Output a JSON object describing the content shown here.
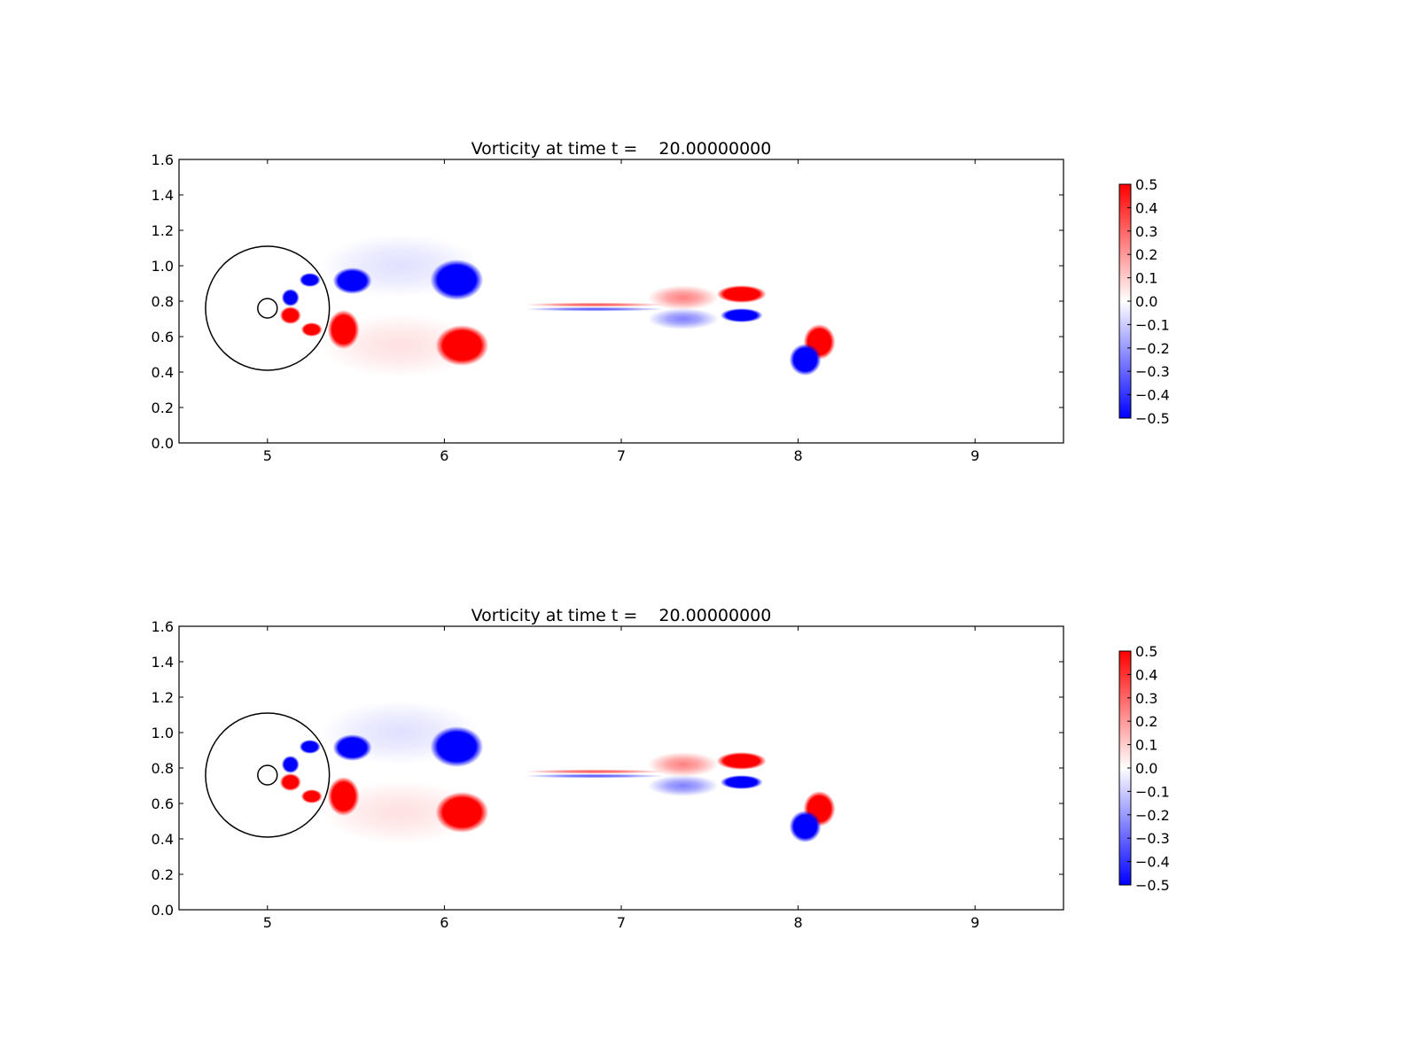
{
  "chart_data": [
    {
      "type": "heatmap",
      "title": "Vorticity at time t =    20.00000000",
      "xlim": [
        4.5,
        9.5
      ],
      "ylim": [
        0.0,
        1.6
      ],
      "xticks": [
        5,
        6,
        7,
        8,
        9
      ],
      "xtick_labels": [
        "5",
        "6",
        "7",
        "8",
        "9"
      ],
      "yticks": [
        0.0,
        0.2,
        0.4,
        0.6,
        0.8,
        1.0,
        1.2,
        1.4,
        1.6
      ],
      "ytick_labels": [
        "0.0",
        "0.2",
        "0.4",
        "0.6",
        "0.8",
        "1.0",
        "1.2",
        "1.4",
        "1.6"
      ],
      "grid": false,
      "colormap": {
        "low": "#0000ff",
        "mid": "#ffffff",
        "high": "#ff0000"
      },
      "colorbar": {
        "range": [
          -0.5,
          0.5
        ],
        "ticks": [
          0.5,
          0.4,
          0.3,
          0.2,
          0.1,
          0.0,
          -0.1,
          -0.2,
          -0.3,
          -0.4,
          -0.5
        ],
        "tick_labels": [
          "0.5",
          "0.4",
          "0.3",
          "0.2",
          "0.1",
          "0.0",
          "−0.1",
          "−0.2",
          "−0.3",
          "−0.4",
          "−0.5"
        ]
      },
      "circles": [
        {
          "cx": 5.0,
          "cy": 0.76,
          "r": 0.35
        },
        {
          "cx": 5.0,
          "cy": 0.76,
          "r": 0.055
        }
      ],
      "vortices": [
        {
          "x": 5.48,
          "y": 0.915,
          "rx": 0.11,
          "ry": 0.075,
          "value": -0.5
        },
        {
          "x": 6.07,
          "y": 0.92,
          "rx": 0.15,
          "ry": 0.115,
          "value": -0.5
        },
        {
          "x": 6.1,
          "y": 0.55,
          "rx": 0.15,
          "ry": 0.115,
          "value": 0.5
        },
        {
          "x": 5.43,
          "y": 0.64,
          "rx": 0.09,
          "ry": 0.11,
          "value": 0.5
        },
        {
          "x": 5.25,
          "y": 0.64,
          "rx": 0.06,
          "ry": 0.04,
          "value": 0.5
        },
        {
          "x": 5.13,
          "y": 0.72,
          "rx": 0.06,
          "ry": 0.05,
          "value": 0.5
        },
        {
          "x": 5.24,
          "y": 0.92,
          "rx": 0.06,
          "ry": 0.04,
          "value": -0.5
        },
        {
          "x": 5.13,
          "y": 0.82,
          "rx": 0.05,
          "ry": 0.05,
          "value": -0.5
        },
        {
          "x": 8.12,
          "y": 0.57,
          "rx": 0.09,
          "ry": 0.1,
          "value": 0.5
        },
        {
          "x": 8.04,
          "y": 0.47,
          "rx": 0.09,
          "ry": 0.09,
          "value": -0.5
        },
        {
          "x": 7.68,
          "y": 0.84,
          "rx": 0.14,
          "ry": 0.05,
          "value": 0.5
        },
        {
          "x": 7.68,
          "y": 0.72,
          "rx": 0.12,
          "ry": 0.04,
          "value": -0.5
        },
        {
          "x": 7.35,
          "y": 0.82,
          "rx": 0.2,
          "ry": 0.07,
          "value": 0.25
        },
        {
          "x": 7.35,
          "y": 0.7,
          "rx": 0.2,
          "ry": 0.06,
          "value": -0.25
        },
        {
          "x": 5.75,
          "y": 1.0,
          "rx": 0.45,
          "ry": 0.18,
          "value": -0.06
        },
        {
          "x": 5.75,
          "y": 0.55,
          "rx": 0.45,
          "ry": 0.18,
          "value": 0.06
        },
        {
          "x": 6.85,
          "y": 0.78,
          "rx": 0.4,
          "ry": 0.012,
          "value": 0.35
        },
        {
          "x": 6.85,
          "y": 0.755,
          "rx": 0.4,
          "ry": 0.012,
          "value": -0.35
        }
      ]
    },
    {
      "type": "heatmap",
      "title": "Vorticity at time t =    20.00000000",
      "xlim": [
        4.5,
        9.5
      ],
      "ylim": [
        0.0,
        1.6
      ],
      "xticks": [
        5,
        6,
        7,
        8,
        9
      ],
      "xtick_labels": [
        "5",
        "6",
        "7",
        "8",
        "9"
      ],
      "yticks": [
        0.0,
        0.2,
        0.4,
        0.6,
        0.8,
        1.0,
        1.2,
        1.4,
        1.6
      ],
      "ytick_labels": [
        "0.0",
        "0.2",
        "0.4",
        "0.6",
        "0.8",
        "1.0",
        "1.2",
        "1.4",
        "1.6"
      ],
      "grid": false,
      "colormap": {
        "low": "#0000ff",
        "mid": "#ffffff",
        "high": "#ff0000"
      },
      "colorbar": {
        "range": [
          -0.5,
          0.5
        ],
        "ticks": [
          0.5,
          0.4,
          0.3,
          0.2,
          0.1,
          0.0,
          -0.1,
          -0.2,
          -0.3,
          -0.4,
          -0.5
        ],
        "tick_labels": [
          "0.5",
          "0.4",
          "0.3",
          "0.2",
          "0.1",
          "0.0",
          "−0.1",
          "−0.2",
          "−0.3",
          "−0.4",
          "−0.5"
        ]
      },
      "circles": [
        {
          "cx": 5.0,
          "cy": 0.76,
          "r": 0.35
        },
        {
          "cx": 5.0,
          "cy": 0.76,
          "r": 0.055
        }
      ],
      "vortices": [
        {
          "x": 5.48,
          "y": 0.915,
          "rx": 0.11,
          "ry": 0.075,
          "value": -0.5
        },
        {
          "x": 6.07,
          "y": 0.92,
          "rx": 0.15,
          "ry": 0.115,
          "value": -0.5
        },
        {
          "x": 6.1,
          "y": 0.55,
          "rx": 0.15,
          "ry": 0.115,
          "value": 0.5
        },
        {
          "x": 5.43,
          "y": 0.64,
          "rx": 0.09,
          "ry": 0.11,
          "value": 0.5
        },
        {
          "x": 5.25,
          "y": 0.64,
          "rx": 0.06,
          "ry": 0.04,
          "value": 0.5
        },
        {
          "x": 5.13,
          "y": 0.72,
          "rx": 0.06,
          "ry": 0.05,
          "value": 0.5
        },
        {
          "x": 5.24,
          "y": 0.92,
          "rx": 0.06,
          "ry": 0.04,
          "value": -0.5
        },
        {
          "x": 5.13,
          "y": 0.82,
          "rx": 0.05,
          "ry": 0.05,
          "value": -0.5
        },
        {
          "x": 8.12,
          "y": 0.57,
          "rx": 0.09,
          "ry": 0.1,
          "value": 0.5
        },
        {
          "x": 8.04,
          "y": 0.47,
          "rx": 0.09,
          "ry": 0.09,
          "value": -0.5
        },
        {
          "x": 7.68,
          "y": 0.84,
          "rx": 0.14,
          "ry": 0.05,
          "value": 0.5
        },
        {
          "x": 7.68,
          "y": 0.72,
          "rx": 0.12,
          "ry": 0.04,
          "value": -0.5
        },
        {
          "x": 7.35,
          "y": 0.82,
          "rx": 0.2,
          "ry": 0.07,
          "value": 0.25
        },
        {
          "x": 7.35,
          "y": 0.7,
          "rx": 0.2,
          "ry": 0.06,
          "value": -0.25
        },
        {
          "x": 5.75,
          "y": 1.0,
          "rx": 0.45,
          "ry": 0.18,
          "value": -0.06
        },
        {
          "x": 5.75,
          "y": 0.55,
          "rx": 0.45,
          "ry": 0.18,
          "value": 0.06
        },
        {
          "x": 6.85,
          "y": 0.78,
          "rx": 0.4,
          "ry": 0.012,
          "value": 0.35
        },
        {
          "x": 6.85,
          "y": 0.755,
          "rx": 0.4,
          "ry": 0.012,
          "value": -0.35
        }
      ]
    }
  ]
}
